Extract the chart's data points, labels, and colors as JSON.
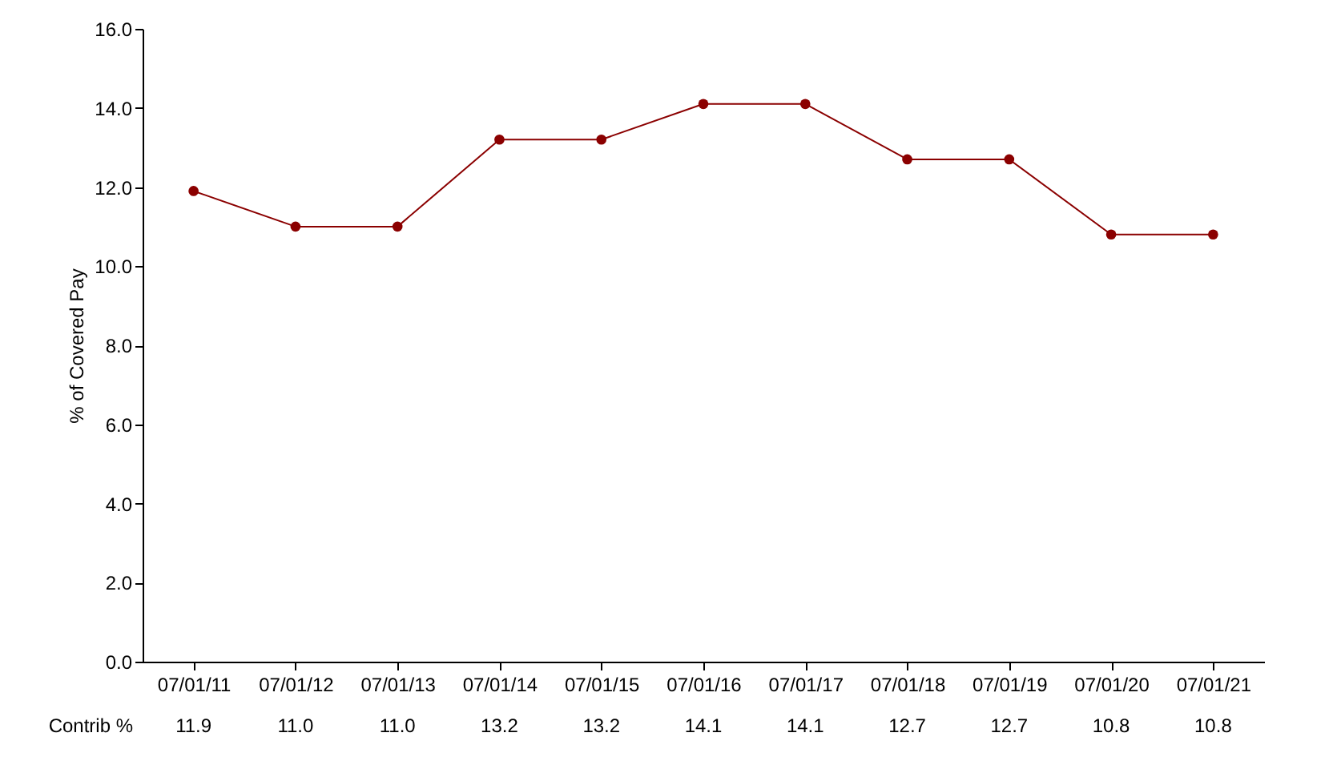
{
  "chart_data": {
    "type": "line",
    "ylabel": "% of Covered Pay",
    "categories": [
      "07/01/11",
      "07/01/12",
      "07/01/13",
      "07/01/14",
      "07/01/15",
      "07/01/16",
      "07/01/17",
      "07/01/18",
      "07/01/19",
      "07/01/20",
      "07/01/21"
    ],
    "series": [
      {
        "color": "#8b0000",
        "values": [
          11.9,
          11.0,
          11.0,
          13.2,
          13.2,
          14.1,
          14.1,
          12.7,
          12.7,
          10.8,
          10.8
        ],
        "value_labels": [
          "11.9",
          "11.0",
          "11.0",
          "13.2",
          "13.2",
          "14.1",
          "14.1",
          "12.7",
          "12.7",
          "10.8",
          "10.8"
        ]
      }
    ],
    "ylim": [
      0,
      16
    ],
    "yticks": [
      {
        "value": 0,
        "label": "0.0"
      },
      {
        "value": 2,
        "label": "2.0"
      },
      {
        "value": 4,
        "label": "4.0"
      },
      {
        "value": 6,
        "label": "6.0"
      },
      {
        "value": 8,
        "label": "8.0"
      },
      {
        "value": 10,
        "label": "10.0"
      },
      {
        "value": 12,
        "label": "12.0"
      },
      {
        "value": 14,
        "label": "14.0"
      },
      {
        "value": 16,
        "label": "16.0"
      }
    ],
    "annotations": [
      "Contrib %"
    ],
    "marker": "circle",
    "line_style": "solid",
    "grid": false
  }
}
